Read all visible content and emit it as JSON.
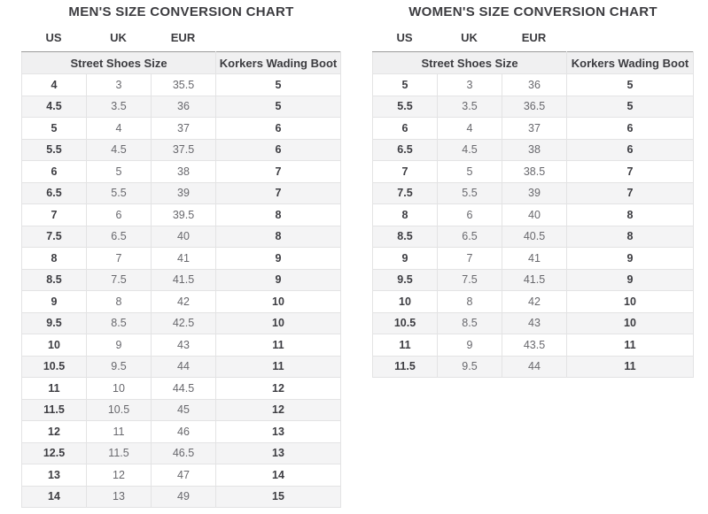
{
  "colors": {
    "title_text": "#3c3c40",
    "bold_cell_text": "#3d3d42",
    "regular_cell_text": "#68686d",
    "stripe_row_bg": "#f4f4f5",
    "group_header_bg": "#f0f0f1",
    "cell_border": "#e3e3e4",
    "group_header_top_border": "#9b9b9b",
    "page_bg": "#ffffff"
  },
  "chart_data": [
    {
      "type": "table",
      "title": "MEN'S SIZE CONVERSION CHART",
      "col_labels": [
        "US",
        "UK",
        "EUR"
      ],
      "group_headers": [
        "Street Shoes Size",
        "Korkers Wading Boot"
      ],
      "columns": [
        "US",
        "UK",
        "EUR",
        "Korkers Wading Boot"
      ],
      "rows": [
        [
          "4",
          "3",
          "35.5",
          "5"
        ],
        [
          "4.5",
          "3.5",
          "36",
          "5"
        ],
        [
          "5",
          "4",
          "37",
          "6"
        ],
        [
          "5.5",
          "4.5",
          "37.5",
          "6"
        ],
        [
          "6",
          "5",
          "38",
          "7"
        ],
        [
          "6.5",
          "5.5",
          "39",
          "7"
        ],
        [
          "7",
          "6",
          "39.5",
          "8"
        ],
        [
          "7.5",
          "6.5",
          "40",
          "8"
        ],
        [
          "8",
          "7",
          "41",
          "9"
        ],
        [
          "8.5",
          "7.5",
          "41.5",
          "9"
        ],
        [
          "9",
          "8",
          "42",
          "10"
        ],
        [
          "9.5",
          "8.5",
          "42.5",
          "10"
        ],
        [
          "10",
          "9",
          "43",
          "11"
        ],
        [
          "10.5",
          "9.5",
          "44",
          "11"
        ],
        [
          "11",
          "10",
          "44.5",
          "12"
        ],
        [
          "11.5",
          "10.5",
          "45",
          "12"
        ],
        [
          "12",
          "11",
          "46",
          "13"
        ],
        [
          "12.5",
          "11.5",
          "46.5",
          "13"
        ],
        [
          "13",
          "12",
          "47",
          "14"
        ],
        [
          "14",
          "13",
          "49",
          "15"
        ]
      ]
    },
    {
      "type": "table",
      "title": "WOMEN'S SIZE CONVERSION CHART",
      "col_labels": [
        "US",
        "UK",
        "EUR"
      ],
      "group_headers": [
        "Street Shoes Size",
        "Korkers Wading Boot"
      ],
      "columns": [
        "US",
        "UK",
        "EUR",
        "Korkers Wading Boot"
      ],
      "rows": [
        [
          "5",
          "3",
          "36",
          "5"
        ],
        [
          "5.5",
          "3.5",
          "36.5",
          "5"
        ],
        [
          "6",
          "4",
          "37",
          "6"
        ],
        [
          "6.5",
          "4.5",
          "38",
          "6"
        ],
        [
          "7",
          "5",
          "38.5",
          "7"
        ],
        [
          "7.5",
          "5.5",
          "39",
          "7"
        ],
        [
          "8",
          "6",
          "40",
          "8"
        ],
        [
          "8.5",
          "6.5",
          "40.5",
          "8"
        ],
        [
          "9",
          "7",
          "41",
          "9"
        ],
        [
          "9.5",
          "7.5",
          "41.5",
          "9"
        ],
        [
          "10",
          "8",
          "42",
          "10"
        ],
        [
          "10.5",
          "8.5",
          "43",
          "10"
        ],
        [
          "11",
          "9",
          "43.5",
          "11"
        ],
        [
          "11.5",
          "9.5",
          "44",
          "11"
        ]
      ]
    }
  ]
}
